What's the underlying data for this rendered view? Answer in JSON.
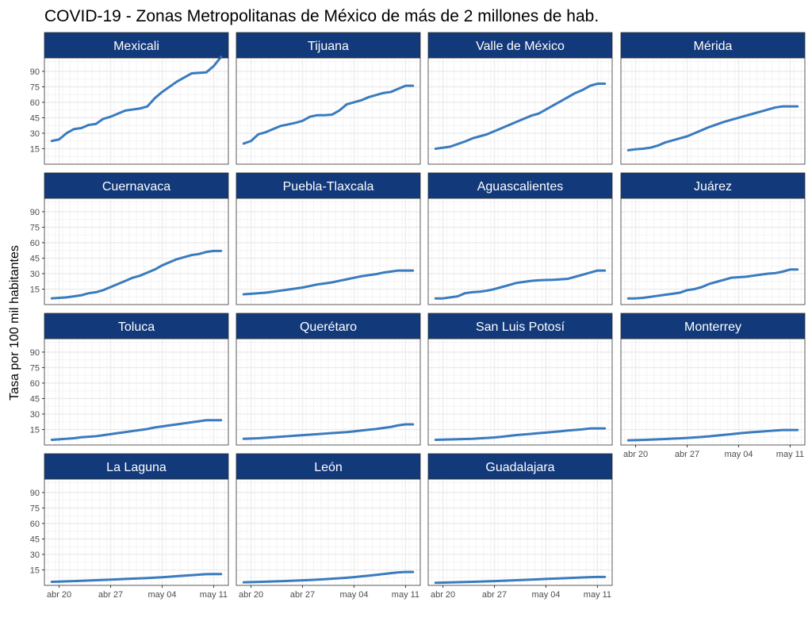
{
  "chart_data": {
    "type": "line",
    "title": "COVID-19 - Zonas Metropolitanas de México de más de 2 millones de hab.",
    "ylabel": "Tasa por 100 mil habitantes",
    "xlabel": "",
    "xlim": [
      "2020-04-18",
      "2020-05-13"
    ],
    "ylim": [
      0,
      103
    ],
    "x_ticks": [
      {
        "date": "2020-04-20",
        "label": "abr 20"
      },
      {
        "date": "2020-04-27",
        "label": "abr 27"
      },
      {
        "date": "2020-05-04",
        "label": "may 04"
      },
      {
        "date": "2020-05-11",
        "label": "may 11"
      }
    ],
    "y_ticks": [
      15,
      30,
      45,
      60,
      75,
      90
    ],
    "grid": true,
    "legend": "none",
    "line_color": "#3a7bbf",
    "strip_color": "#12397a",
    "strip_text_color": "#ffffff",
    "panel_border_color": "#333333",
    "grid_major_color": "#ebebeb",
    "grid_minor_color": "#f4f4f4",
    "x": [
      "2020-04-19",
      "2020-04-20",
      "2020-04-21",
      "2020-04-22",
      "2020-04-23",
      "2020-04-24",
      "2020-04-25",
      "2020-04-26",
      "2020-04-27",
      "2020-04-28",
      "2020-04-29",
      "2020-04-30",
      "2020-05-01",
      "2020-05-02",
      "2020-05-03",
      "2020-05-04",
      "2020-05-05",
      "2020-05-06",
      "2020-05-07",
      "2020-05-08",
      "2020-05-09",
      "2020-05-10",
      "2020-05-11",
      "2020-05-12"
    ],
    "series": [
      {
        "name": "Mexicali",
        "values": [
          22.5,
          24,
          30,
          34,
          35,
          38,
          39,
          44,
          46,
          49,
          52,
          53,
          54,
          56,
          64,
          70,
          75,
          80,
          84,
          88,
          88.5,
          89,
          95,
          104
        ]
      },
      {
        "name": "Tijuana",
        "values": [
          20,
          22.5,
          29,
          31,
          34,
          37,
          38.5,
          40,
          42,
          46,
          47.5,
          47.5,
          48,
          52,
          58,
          60,
          62,
          65,
          67,
          69,
          70,
          73,
          76,
          76
        ]
      },
      {
        "name": "Valle de México",
        "values": [
          15,
          16,
          17,
          19.5,
          22,
          25,
          27,
          29,
          32,
          35,
          38,
          41,
          44,
          47,
          49,
          53,
          57,
          61,
          65,
          69,
          72,
          76,
          78,
          78
        ]
      },
      {
        "name": "Mérida",
        "values": [
          13.5,
          14.5,
          15,
          16,
          18,
          21,
          23,
          25,
          27,
          30,
          33,
          36,
          38.5,
          41,
          43,
          45,
          47,
          49,
          51,
          53,
          55,
          56,
          56,
          56
        ]
      },
      {
        "name": "Cuernavaca",
        "values": [
          6,
          6.5,
          7,
          8,
          9,
          11,
          12,
          14,
          17,
          20,
          23,
          26,
          28,
          31,
          34,
          38,
          41,
          44,
          46,
          48,
          49,
          51,
          52,
          52
        ]
      },
      {
        "name": "Puebla-Tlaxcala",
        "values": [
          10,
          10.5,
          11,
          11.5,
          12.5,
          13.5,
          14.5,
          15.5,
          16.5,
          18,
          19.5,
          20.5,
          21.5,
          23,
          24.5,
          26,
          27.5,
          28.5,
          29.5,
          31,
          32,
          33,
          33,
          33
        ]
      },
      {
        "name": "Aguascalientes",
        "values": [
          6,
          6,
          7,
          8,
          11,
          12,
          12.5,
          13.5,
          15,
          17,
          19,
          21,
          22,
          23,
          23.5,
          23.8,
          24,
          24.5,
          25,
          27,
          29,
          31,
          33,
          33
        ]
      },
      {
        "name": "Juárez",
        "values": [
          6,
          6,
          6.5,
          7.5,
          8.5,
          9.5,
          10.5,
          11.5,
          14,
          15,
          17,
          20,
          22,
          24,
          26,
          26.5,
          27,
          28,
          29,
          30,
          30.5,
          32,
          34,
          34
        ]
      },
      {
        "name": "Toluca",
        "values": [
          5,
          5.5,
          6,
          6.5,
          7.5,
          8,
          8.5,
          9.5,
          10.5,
          11.5,
          12.5,
          13.5,
          14.5,
          15.5,
          17,
          18,
          19,
          20,
          21,
          22,
          23,
          24,
          24,
          24
        ]
      },
      {
        "name": "Querétaro",
        "values": [
          6,
          6.2,
          6.5,
          7,
          7.5,
          8,
          8.5,
          9,
          9.5,
          10,
          10.5,
          11,
          11.5,
          12,
          12.5,
          13.2,
          14,
          14.8,
          15.5,
          16.5,
          17.5,
          19,
          20,
          20
        ]
      },
      {
        "name": "San Luis Potosí",
        "values": [
          5,
          5.2,
          5.4,
          5.6,
          5.8,
          6,
          6.4,
          6.8,
          7.3,
          8,
          8.8,
          9.6,
          10.2,
          10.8,
          11.4,
          12,
          12.7,
          13.3,
          14,
          14.6,
          15.2,
          16,
          16,
          16
        ]
      },
      {
        "name": "Monterrey",
        "values": [
          4.5,
          4.7,
          4.9,
          5.2,
          5.5,
          5.8,
          6.1,
          6.4,
          6.8,
          7.3,
          7.8,
          8.4,
          9.1,
          9.8,
          10.5,
          11.2,
          11.9,
          12.5,
          13,
          13.5,
          14,
          14.5,
          14.5,
          14.5
        ]
      },
      {
        "name": "La Laguna",
        "values": [
          3.5,
          3.7,
          3.9,
          4.1,
          4.4,
          4.7,
          5,
          5.3,
          5.6,
          5.9,
          6.2,
          6.5,
          6.8,
          7.1,
          7.5,
          7.9,
          8.4,
          8.9,
          9.4,
          9.9,
          10.4,
          10.9,
          11,
          11
        ]
      },
      {
        "name": "León",
        "values": [
          3,
          3.2,
          3.4,
          3.6,
          3.8,
          4,
          4.3,
          4.6,
          4.9,
          5.2,
          5.6,
          6,
          6.4,
          6.9,
          7.4,
          8,
          8.7,
          9.4,
          10.2,
          11,
          11.8,
          12.6,
          13,
          13
        ]
      },
      {
        "name": "Guadalajara",
        "values": [
          2.5,
          2.7,
          2.9,
          3.1,
          3.3,
          3.5,
          3.7,
          3.9,
          4.1,
          4.4,
          4.7,
          5,
          5.3,
          5.6,
          5.9,
          6.2,
          6.5,
          6.8,
          7.1,
          7.4,
          7.7,
          8,
          8.2,
          8.2
        ]
      }
    ]
  }
}
